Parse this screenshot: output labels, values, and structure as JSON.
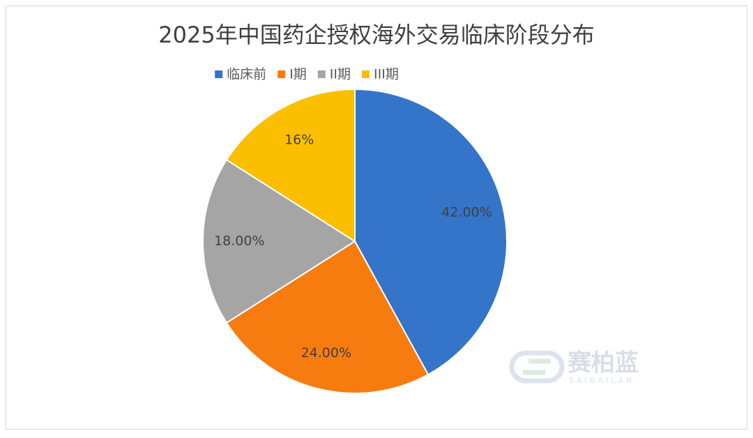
{
  "chart_data": {
    "type": "pie",
    "title": "2025年中国药企授权海外交易临床阶段分布",
    "categories": [
      "临床前",
      "I期",
      "II期",
      "III期"
    ],
    "values": [
      42,
      24,
      18,
      16
    ],
    "value_labels": [
      "42.00%",
      "24.00%",
      "18.00%",
      "16%"
    ],
    "colors": [
      "#3474c9",
      "#f77c0f",
      "#a5a5a5",
      "#fbbf00"
    ],
    "legend": "top"
  },
  "watermark": {
    "name": "赛柏蓝",
    "latin": "SAIBAILAN"
  }
}
